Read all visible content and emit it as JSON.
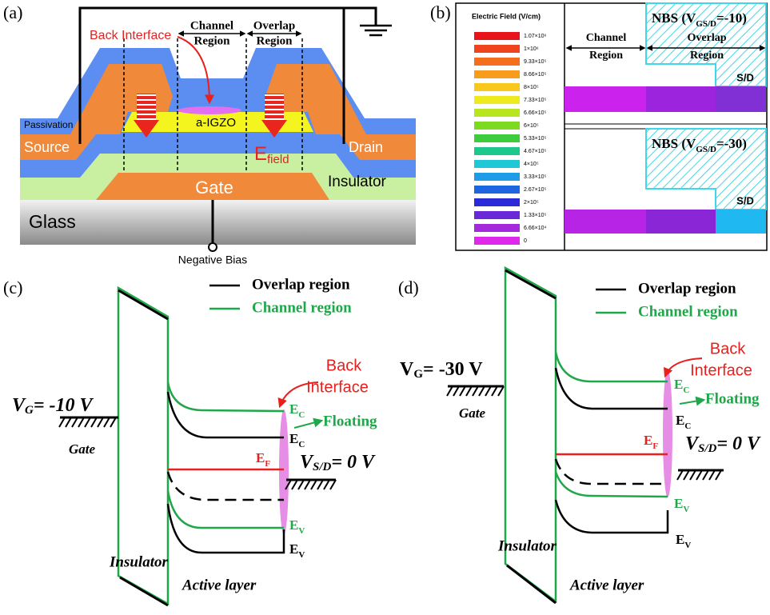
{
  "panel_a": {
    "label": "(a)",
    "channel_region": {
      "line1": "Channel",
      "line2": "Region"
    },
    "overlap_region": {
      "line1": "Overlap",
      "line2": "Region"
    },
    "back_interface": "Back Interface",
    "passivation": "Passivation",
    "channel_layer": "a-IGZO",
    "source": "Source",
    "drain": "Drain",
    "field": {
      "main": "E",
      "sub": "field"
    },
    "gate": "Gate",
    "insulator": "Insulator",
    "glass": "Glass",
    "bias": "Negative Bias"
  },
  "panel_b": {
    "label": "(b)",
    "scale_title": "Electric Field (V/cm)",
    "scale_labels": [
      "1.07×10⁶",
      "1×10⁶",
      "9.33×10⁵",
      "8.66×10⁵",
      "8×10⁵",
      "7.33×10⁵",
      "6.66×10⁵",
      "6×10⁵",
      "5.33×10⁵",
      "4.67×10⁵",
      "4×10⁵",
      "3.33×10⁵",
      "2.67×10⁵",
      "2×10⁵",
      "1.33×10⁵",
      "6.66×10⁴",
      "0"
    ],
    "channel_region": {
      "line1": "Channel",
      "line2": "Region"
    },
    "overlap_region": {
      "line1": "Overlap",
      "line2": "Region"
    },
    "conditions": [
      {
        "prefix": "NBS (",
        "var": "V",
        "sub": "GS/D",
        "suffix": "=-10)",
        "contact": "S/D"
      },
      {
        "prefix": "NBS (",
        "var": "V",
        "sub": "GS/D",
        "suffix": "=-30)",
        "contact": "S/D"
      }
    ]
  },
  "panel_c": {
    "label": "(c)",
    "legend": [
      "Overlap region",
      "Channel region"
    ],
    "back_interface": [
      "Back",
      "Interface"
    ],
    "gate_voltage": {
      "var": "V",
      "sub": "G",
      "rest": "= -10 V"
    },
    "gate": "Gate",
    "floating": "Floating",
    "ec_channel": {
      "main": "E",
      "sub": "C"
    },
    "ec_overlap": {
      "main": "E",
      "sub": "C"
    },
    "ef": {
      "main": "E",
      "sub": "F"
    },
    "ev_channel": {
      "main": "E",
      "sub": "V"
    },
    "ev_overlap": {
      "main": "E",
      "sub": "V"
    },
    "sd_voltage": {
      "var": "V",
      "sub": "S/D",
      "rest": "= 0 V"
    },
    "insulator": "Insulator",
    "active_layer": "Active layer"
  },
  "panel_d": {
    "label": "(d)",
    "legend": [
      "Overlap region",
      "Channel region"
    ],
    "back_interface": [
      "Back",
      "Interface"
    ],
    "gate_voltage": {
      "var": "V",
      "sub": "G",
      "rest": "= -30 V"
    },
    "gate": "Gate",
    "floating": "Floating",
    "ec_channel": {
      "main": "E",
      "sub": "C"
    },
    "ec_overlap": {
      "main": "E",
      "sub": "C"
    },
    "ef": {
      "main": "E",
      "sub": "F"
    },
    "ev_channel": {
      "main": "E",
      "sub": "V"
    },
    "ev_overlap": {
      "main": "E",
      "sub": "V"
    },
    "sd_voltage": {
      "var": "V",
      "sub": "S/D",
      "rest": "= 0 V"
    },
    "insulator": "Insulator",
    "active_layer": "Active layer"
  }
}
